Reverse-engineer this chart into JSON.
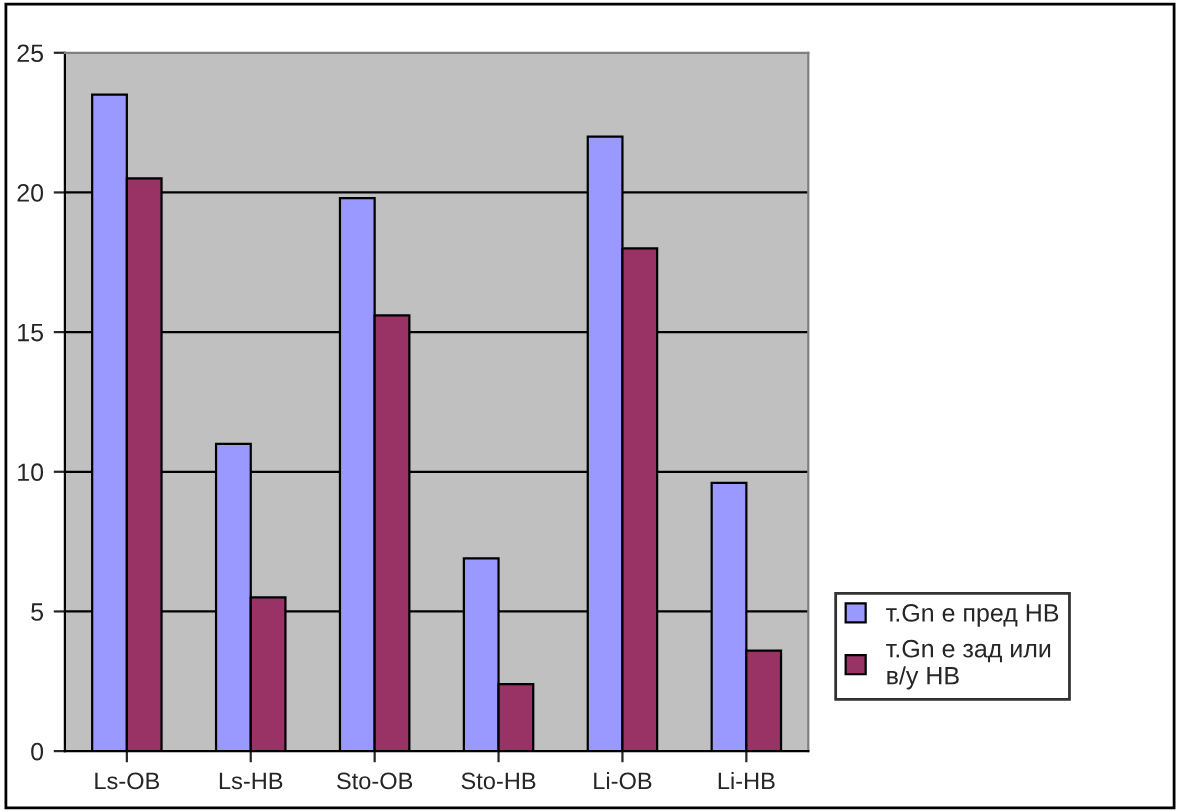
{
  "chart_data": {
    "type": "bar",
    "categories": [
      "Ls-OB",
      "Ls-HB",
      "Sto-OB",
      "Sto-HB",
      "Li-OB",
      "Li-HB"
    ],
    "series": [
      {
        "name": "т.Gn е пред НВ",
        "color": "#9999ff",
        "values": [
          23.5,
          11.0,
          19.8,
          6.9,
          22.0,
          9.6
        ]
      },
      {
        "name": "т.Gn е зад или\nв/у НВ",
        "color": "#993366",
        "values": [
          20.5,
          5.5,
          15.6,
          2.4,
          18.0,
          3.6
        ]
      }
    ],
    "ylim": [
      0,
      25
    ],
    "yticks": [
      0,
      5,
      10,
      15,
      20,
      25
    ],
    "grid": "y",
    "legend": "right"
  }
}
